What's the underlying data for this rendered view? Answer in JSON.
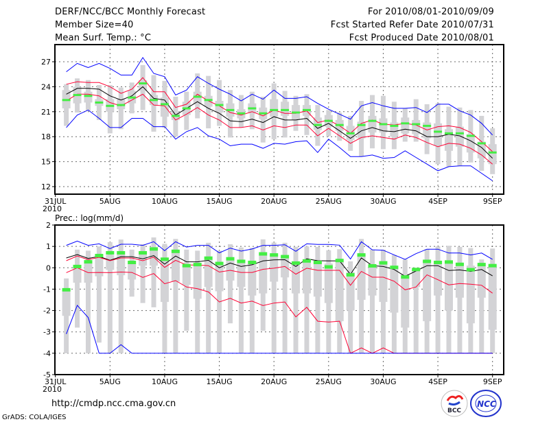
{
  "header": {
    "title": "DERF/NCC/BCC Monthly Forecast",
    "member_size": "Member Size=40",
    "variable": "Mean Surf. Temp.: °C",
    "period": "For 2010/08/01-2010/09/09",
    "start_date": "Fcst Started Refer Date 2010/07/31",
    "produced_date": "Fcst Produced Date 2010/08/01"
  },
  "footer": {
    "url": "http://cmdp.ncc.cma.gov.cn",
    "credit": "GrADS: COLA/IGES",
    "logo_bcc": "BCC",
    "logo_ncc": "NCC"
  },
  "colors": {
    "box": "#d3d3d6",
    "mean": "#000000",
    "inner": "#ff0033",
    "outer": "#0000ff",
    "median": "#44ee44"
  },
  "chart_data": [
    {
      "type": "box",
      "title": "Mean Surf. Temp.: °C",
      "ylabel": "°C",
      "ylim": [
        11,
        29
      ],
      "yticks": [
        12,
        15,
        18,
        21,
        24,
        27
      ],
      "xlim_days": [
        0,
        40
      ],
      "xticks": [
        {
          "day": 0,
          "label": "31JUL"
        },
        {
          "day": 5,
          "label": "5AUG"
        },
        {
          "day": 10,
          "label": "10AUG"
        },
        {
          "day": 15,
          "label": "15AUG"
        },
        {
          "day": 20,
          "label": "20AUG"
        },
        {
          "day": 25,
          "label": "25AUG"
        },
        {
          "day": 30,
          "label": "30AUG"
        },
        {
          "day": 35,
          "label": "4SEP"
        },
        {
          "day": 40,
          "label": "9SEP"
        }
      ],
      "year_label": "2010",
      "grid": true,
      "boxes": [
        [
          19.3,
          21.4,
          23.6,
          24.3
        ],
        [
          20.9,
          22.0,
          24.0,
          25.0
        ],
        [
          21.1,
          22.1,
          23.4,
          24.8
        ],
        [
          20.0,
          21.7,
          22.5,
          24.2
        ],
        [
          18.4,
          21.0,
          22.5,
          24.2
        ],
        [
          18.9,
          21.3,
          22.5,
          23.9
        ],
        [
          20.8,
          22.0,
          23.5,
          24.5
        ],
        [
          21.2,
          23.5,
          24.8,
          26.6
        ],
        [
          18.6,
          21.8,
          23.0,
          25.4
        ],
        [
          19.1,
          20.4,
          22.7,
          24.7
        ],
        [
          18.0,
          20.0,
          21.0,
          22.8
        ],
        [
          18.8,
          20.6,
          22.2,
          23.4
        ],
        [
          20.2,
          21.9,
          23.4,
          25.6
        ],
        [
          19.0,
          21.6,
          22.9,
          25.3
        ],
        [
          19.3,
          20.9,
          22.3,
          24.8
        ],
        [
          17.9,
          20.4,
          22.0,
          23.6
        ],
        [
          19.1,
          20.2,
          21.3,
          23.0
        ],
        [
          18.9,
          20.8,
          22.0,
          23.4
        ],
        [
          17.3,
          20.1,
          21.5,
          22.8
        ],
        [
          17.7,
          20.4,
          22.5,
          24.4
        ],
        [
          17.9,
          20.5,
          22.2,
          23.5
        ],
        [
          18.7,
          20.0,
          21.8,
          22.9
        ],
        [
          18.2,
          20.5,
          21.8,
          23.1
        ],
        [
          16.9,
          18.8,
          20.3,
          21.8
        ],
        [
          18.1,
          19.2,
          20.6,
          21.2
        ],
        [
          17.5,
          18.7,
          20.0,
          20.9
        ],
        [
          16.3,
          17.6,
          19.3,
          20.5
        ],
        [
          15.6,
          17.8,
          19.8,
          22.3
        ],
        [
          16.6,
          18.5,
          20.5,
          23.0
        ],
        [
          16.5,
          18.5,
          20.2,
          22.9
        ],
        [
          16.5,
          18.0,
          19.7,
          22.2
        ],
        [
          17.4,
          18.4,
          20.3,
          21.4
        ],
        [
          17.4,
          18.3,
          20.0,
          22.5
        ],
        [
          15.9,
          17.8,
          19.7,
          21.9
        ],
        [
          14.7,
          16.9,
          19.6,
          22.0
        ],
        [
          14.4,
          16.3,
          18.9,
          21.6
        ],
        [
          14.5,
          16.8,
          19.2,
          21.5
        ],
        [
          14.9,
          16.1,
          18.3,
          21.2
        ],
        [
          13.9,
          15.4,
          17.4,
          20.5
        ],
        [
          13.5,
          14.7,
          17.1,
          19.0
        ]
      ],
      "series": [
        {
          "name": "ensemble mean",
          "color_key": "mean",
          "values": [
            23.1,
            23.8,
            23.8,
            23.7,
            22.9,
            22.4,
            22.9,
            24.0,
            22.6,
            22.4,
            20.6,
            21.4,
            22.2,
            21.4,
            20.8,
            19.9,
            19.8,
            20.1,
            19.7,
            20.4,
            20.0,
            20.0,
            20.2,
            19.0,
            19.6,
            18.7,
            17.8,
            18.7,
            19.1,
            18.7,
            18.6,
            18.9,
            18.7,
            18.0,
            18.0,
            18.3,
            18.1,
            17.5,
            16.7,
            15.4
          ]
        },
        {
          "name": "inner upper",
          "color_key": "inner",
          "values": [
            24.3,
            24.6,
            24.5,
            24.5,
            24.0,
            23.2,
            23.7,
            25.1,
            23.4,
            23.4,
            21.5,
            21.9,
            23.1,
            22.3,
            21.7,
            20.9,
            20.6,
            21.0,
            20.5,
            21.2,
            20.8,
            20.8,
            21.1,
            19.7,
            20.0,
            19.3,
            18.4,
            19.6,
            20.0,
            19.5,
            19.4,
            19.6,
            19.4,
            18.8,
            19.2,
            19.3,
            19.1,
            18.5,
            17.4,
            16.2
          ]
        },
        {
          "name": "inner lower",
          "color_key": "inner",
          "values": [
            22.3,
            23.1,
            23.1,
            22.9,
            22.1,
            21.7,
            22.4,
            23.1,
            21.8,
            21.7,
            20.0,
            20.7,
            21.5,
            20.6,
            20.0,
            19.1,
            19.1,
            19.3,
            18.8,
            19.3,
            19.1,
            19.4,
            19.4,
            18.1,
            19.0,
            18.1,
            17.2,
            17.9,
            18.1,
            17.9,
            17.7,
            18.2,
            17.9,
            17.3,
            16.8,
            17.2,
            17.1,
            16.6,
            15.8,
            14.7
          ]
        },
        {
          "name": "outer upper",
          "color_key": "outer",
          "values": [
            25.8,
            26.8,
            26.3,
            26.8,
            26.2,
            25.4,
            25.4,
            27.5,
            25.6,
            25.2,
            23.0,
            23.6,
            25.2,
            24.4,
            23.7,
            23.1,
            22.3,
            23.1,
            22.5,
            23.6,
            22.6,
            22.6,
            22.8,
            22.0,
            21.3,
            20.7,
            20.1,
            21.7,
            22.1,
            21.7,
            21.4,
            21.4,
            21.5,
            20.9,
            21.9,
            21.9,
            21.1,
            20.6,
            19.6,
            18.2
          ]
        },
        {
          "name": "outer lower",
          "color_key": "outer",
          "values": [
            19.1,
            20.6,
            21.2,
            20.2,
            19.1,
            19.1,
            20.2,
            20.2,
            19.2,
            19.2,
            17.7,
            18.6,
            19.1,
            18.1,
            17.7,
            16.9,
            17.1,
            17.1,
            16.6,
            17.2,
            17.1,
            17.4,
            17.5,
            16.1,
            17.7,
            16.7,
            15.6,
            15.6,
            15.8,
            15.4,
            15.5,
            16.3,
            15.5,
            14.7,
            13.9,
            14.4,
            14.5,
            14.5,
            13.6,
            12.7
          ]
        }
      ],
      "markers": {
        "name": "median",
        "color_key": "median",
        "values": [
          22.4,
          23.0,
          22.9,
          22.1,
          21.7,
          21.8,
          22.7,
          24.4,
          22.4,
          21.9,
          20.5,
          21.4,
          22.8,
          22.4,
          21.8,
          21.2,
          20.8,
          21.4,
          20.8,
          21.2,
          21.2,
          20.9,
          21.2,
          19.4,
          19.9,
          19.4,
          18.4,
          19.4,
          19.9,
          19.5,
          19.3,
          19.6,
          19.5,
          19.3,
          18.6,
          18.4,
          18.4,
          18.1,
          17.2,
          16.1
        ]
      }
    },
    {
      "type": "box",
      "title": "Prec.: log(mm/d)",
      "ylabel": "log(mm/d)",
      "ylim": [
        -5,
        2
      ],
      "yticks": [
        -5,
        -4,
        -3,
        -2,
        -1,
        0,
        1,
        2
      ],
      "xlim_days": [
        0,
        40
      ],
      "xticks": [
        {
          "day": 0,
          "label": "31JUL"
        },
        {
          "day": 5,
          "label": "5AUG"
        },
        {
          "day": 10,
          "label": "10AUG"
        },
        {
          "day": 15,
          "label": "15AUG"
        },
        {
          "day": 20,
          "label": "20AUG"
        },
        {
          "day": 25,
          "label": "25AUG"
        },
        {
          "day": 30,
          "label": "30AUG"
        },
        {
          "day": 35,
          "label": "4SEP"
        },
        {
          "day": 40,
          "label": "9SEP"
        }
      ],
      "year_label": "2010",
      "grid": true,
      "boxes": [
        [
          -4,
          -2.25,
          -1.0,
          -0.5
        ],
        [
          -2.8,
          -0.7,
          0.0,
          0.85
        ],
        [
          -4,
          -0.7,
          0.3,
          0.8
        ],
        [
          -3.5,
          -0.4,
          0.6,
          1.0
        ],
        [
          -4,
          -0.1,
          0.6,
          1.2
        ],
        [
          -4,
          -0.35,
          0.65,
          1.32
        ],
        [
          -1.35,
          -0.55,
          0.2,
          0.85
        ],
        [
          -1.65,
          0.1,
          0.65,
          1.1
        ],
        [
          -1.85,
          0.1,
          0.85,
          1.42
        ],
        [
          -4,
          -1.6,
          0.3,
          1.12
        ],
        [
          -4,
          -0.65,
          0.7,
          1.35
        ],
        [
          -2.95,
          -0.8,
          0.1,
          0.85
        ],
        [
          -4,
          -1.45,
          0.1,
          0.8
        ],
        [
          -4,
          -0.9,
          0.4,
          1.17
        ],
        [
          -4,
          -1.1,
          0.2,
          0.8
        ],
        [
          -2.6,
          -0.6,
          0.4,
          1.1
        ],
        [
          -4,
          -0.9,
          0.3,
          0.95
        ],
        [
          -4,
          -1.3,
          0.2,
          0.93
        ],
        [
          -2.95,
          -1.2,
          0.6,
          1.33
        ],
        [
          -4,
          -0.65,
          0.6,
          1.18
        ],
        [
          -4,
          -0.45,
          0.5,
          1.17
        ],
        [
          -4,
          -1.2,
          0.2,
          0.98
        ],
        [
          -4,
          -1.2,
          0.4,
          1.0
        ],
        [
          -4,
          -1.35,
          0.3,
          0.98
        ],
        [
          -4,
          -1.65,
          0.2,
          0.82
        ],
        [
          -4,
          -2.5,
          0.3,
          0.87
        ],
        [
          -4,
          -2.0,
          -0.2,
          0.3
        ],
        [
          -4,
          -1.5,
          0.6,
          1.35
        ],
        [
          -4,
          -1.3,
          0.1,
          0.85
        ],
        [
          -4,
          -1.6,
          0.2,
          0.85
        ],
        [
          -4,
          -2.1,
          0.0,
          0.6
        ],
        [
          -4,
          -2.8,
          -0.3,
          0.39
        ],
        [
          -4,
          -0.9,
          -0.08,
          -0.05
        ],
        [
          -4,
          -2.5,
          0.3,
          0.87
        ],
        [
          -4,
          -1.3,
          0.3,
          1.0
        ],
        [
          -4,
          -2.0,
          0.3,
          1.03
        ],
        [
          -4,
          -1.4,
          0.2,
          0.98
        ],
        [
          -4,
          -2.6,
          0.1,
          0.92
        ],
        [
          -4,
          -1.4,
          0.1,
          0.39
        ],
        [
          -4,
          -2.9,
          0.1,
          0.9
        ]
      ],
      "series": [
        {
          "name": "ensemble mean",
          "color_key": "mean",
          "values": [
            0.46,
            0.62,
            0.44,
            0.53,
            0.35,
            0.52,
            0.52,
            0.42,
            0.57,
            0.17,
            0.55,
            0.28,
            0.28,
            0.35,
            0.0,
            0.22,
            0.06,
            0.14,
            0.32,
            0.37,
            0.38,
            0.06,
            0.42,
            0.33,
            0.32,
            0.32,
            -0.31,
            0.46,
            0.1,
            0.06,
            -0.08,
            -0.4,
            -0.15,
            0.1,
            0.1,
            -0.13,
            -0.1,
            -0.17,
            -0.08,
            -0.38
          ]
        },
        {
          "name": "inner upper",
          "color_key": "inner",
          "values": [
            0.33,
            0.55,
            0.38,
            0.49,
            0.33,
            0.46,
            0.46,
            0.33,
            0.5,
            0.02,
            0.35,
            0.13,
            0.13,
            0.1,
            -0.2,
            -0.12,
            -0.22,
            -0.22,
            -0.07,
            -0.02,
            0.06,
            -0.3,
            -0.02,
            -0.12,
            -0.12,
            -0.12,
            -0.82,
            -0.17,
            -0.44,
            -0.44,
            -0.63,
            -1.03,
            -0.9,
            -0.33,
            -0.56,
            -0.8,
            -0.74,
            -0.77,
            -0.82,
            -1.19
          ]
        },
        {
          "name": "inner lower",
          "color_key": "inner",
          "values": [
            -0.23,
            0,
            -0.23,
            -0.22,
            -0.23,
            -0.2,
            -0.22,
            -0.45,
            -0.27,
            -0.75,
            -0.6,
            -0.9,
            -0.98,
            -1.13,
            -1.6,
            -1.43,
            -1.65,
            -1.56,
            -1.77,
            -1.65,
            -1.6,
            -2.3,
            -1.85,
            -2.5,
            -2.54,
            -2.5,
            -4,
            -3.75,
            -4,
            -3.75,
            -4,
            -4,
            -4,
            -4,
            -4,
            -4,
            -4,
            -4,
            -4,
            -4
          ]
        },
        {
          "name": "outer upper",
          "color_key": "outer",
          "values": [
            1.05,
            1.25,
            1.05,
            1.12,
            0.9,
            1.1,
            1.1,
            1.05,
            1.22,
            0.8,
            1.22,
            0.97,
            1.05,
            1.05,
            0.7,
            0.92,
            0.78,
            0.88,
            1.05,
            1.05,
            1.08,
            0.77,
            1.12,
            1.09,
            1.09,
            1.06,
            0.41,
            1.22,
            0.84,
            0.82,
            0.6,
            0.39,
            0.66,
            0.87,
            0.87,
            0.69,
            0.69,
            0.6,
            0.69,
            0.39
          ]
        },
        {
          "name": "outer lower",
          "color_key": "outer",
          "values": [
            -3.1,
            -1.76,
            -2.33,
            -4,
            -4,
            -3.6,
            -4,
            -4,
            -4,
            -4,
            -4,
            -4,
            -4,
            -4,
            -4,
            -4,
            -4,
            -4,
            -4,
            -4,
            -4,
            -4,
            -4,
            -4,
            -4,
            -4,
            -4,
            -4,
            -4,
            -4,
            -4,
            -4,
            -4,
            -4,
            -4,
            -4,
            -4,
            -4,
            -4,
            -4
          ]
        }
      ],
      "markers": {
        "name": "median",
        "color_key": "median",
        "values": [
          -1.03,
          0.06,
          0.28,
          0.57,
          0.7,
          0.7,
          0.25,
          0.7,
          0.88,
          0.4,
          0.77,
          0.1,
          0.15,
          0.45,
          0.2,
          0.42,
          0.3,
          0.25,
          0.65,
          0.6,
          0.52,
          0.22,
          0.32,
          0.25,
          0.04,
          0.34,
          -0.33,
          0.6,
          0.09,
          0.23,
          0.02,
          -0.43,
          -0.08,
          0.3,
          0.25,
          0.27,
          0.16,
          -0.09,
          0.15,
          0.1
        ]
      }
    }
  ]
}
